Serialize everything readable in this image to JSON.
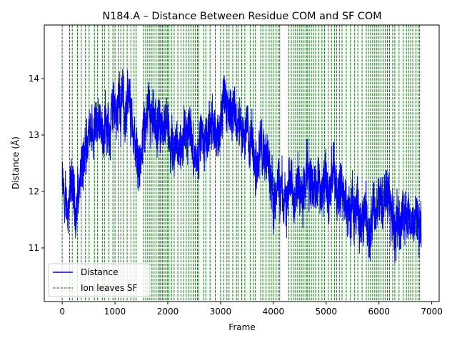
{
  "chart_data": {
    "type": "line",
    "title": "N184.A – Distance Between Residue COM and SF COM",
    "xlabel": "Frame",
    "ylabel": "Distance (Å)",
    "xlim": [
      -340,
      7140
    ],
    "ylim": [
      10.05,
      14.95
    ],
    "xticks": [
      0,
      1000,
      2000,
      3000,
      4000,
      5000,
      6000,
      7000
    ],
    "yticks": [
      11,
      12,
      13,
      14
    ],
    "grid": false,
    "legend": {
      "position": "lower-left"
    },
    "colors": {
      "distance": "#0000ff",
      "events": "#008000"
    },
    "series": [
      {
        "name": "Distance",
        "style": "solid",
        "anchors": [
          [
            0,
            12.2
          ],
          [
            50,
            11.6
          ],
          [
            100,
            11.8
          ],
          [
            150,
            11.9
          ],
          [
            200,
            12.1
          ],
          [
            250,
            11.6
          ],
          [
            300,
            11.9
          ],
          [
            350,
            12.3
          ],
          [
            400,
            12.4
          ],
          [
            450,
            12.7
          ],
          [
            500,
            13.1
          ],
          [
            550,
            13.3
          ],
          [
            600,
            13.0
          ],
          [
            650,
            13.2
          ],
          [
            700,
            13.1
          ],
          [
            750,
            13.0
          ],
          [
            800,
            13.2
          ],
          [
            850,
            13.3
          ],
          [
            900,
            13.0
          ],
          [
            950,
            13.5
          ],
          [
            1000,
            13.6
          ],
          [
            1050,
            13.4
          ],
          [
            1100,
            13.5
          ],
          [
            1150,
            13.6
          ],
          [
            1200,
            13.3
          ],
          [
            1250,
            13.6
          ],
          [
            1300,
            13.4
          ],
          [
            1350,
            13.0
          ],
          [
            1400,
            12.7
          ],
          [
            1450,
            12.6
          ],
          [
            1500,
            12.5
          ],
          [
            1550,
            13.1
          ],
          [
            1600,
            13.3
          ],
          [
            1650,
            13.3
          ],
          [
            1700,
            13.0
          ],
          [
            1750,
            13.1
          ],
          [
            1800,
            13.1
          ],
          [
            1850,
            12.9
          ],
          [
            1900,
            13.2
          ],
          [
            1950,
            13.3
          ],
          [
            2000,
            13.0
          ],
          [
            2050,
            12.8
          ],
          [
            2100,
            12.9
          ],
          [
            2150,
            13.0
          ],
          [
            2200,
            12.9
          ],
          [
            2250,
            12.7
          ],
          [
            2300,
            12.8
          ],
          [
            2350,
            12.9
          ],
          [
            2400,
            13.1
          ],
          [
            2450,
            13.0
          ],
          [
            2500,
            12.6
          ],
          [
            2550,
            12.6
          ],
          [
            2600,
            12.9
          ],
          [
            2650,
            12.9
          ],
          [
            2700,
            12.8
          ],
          [
            2750,
            13.0
          ],
          [
            2800,
            13.2
          ],
          [
            2850,
            13.3
          ],
          [
            2900,
            13.2
          ],
          [
            2950,
            13.0
          ],
          [
            3000,
            13.2
          ],
          [
            3050,
            13.6
          ],
          [
            3100,
            13.4
          ],
          [
            3150,
            13.5
          ],
          [
            3200,
            13.6
          ],
          [
            3250,
            13.4
          ],
          [
            3300,
            13.3
          ],
          [
            3350,
            13.4
          ],
          [
            3400,
            13.1
          ],
          [
            3450,
            13.0
          ],
          [
            3500,
            13.2
          ],
          [
            3550,
            13.0
          ],
          [
            3600,
            12.8
          ],
          [
            3650,
            12.6
          ],
          [
            3700,
            12.8
          ],
          [
            3750,
            12.9
          ],
          [
            3800,
            12.6
          ],
          [
            3850,
            12.5
          ],
          [
            3900,
            12.5
          ],
          [
            3950,
            12.3
          ],
          [
            4000,
            12.0
          ],
          [
            4050,
            11.9
          ],
          [
            4100,
            11.8
          ],
          [
            4150,
            12.0
          ],
          [
            4200,
            11.9
          ],
          [
            4250,
            11.8
          ],
          [
            4300,
            12.1
          ],
          [
            4350,
            12.3
          ],
          [
            4400,
            12.1
          ],
          [
            4450,
            12.2
          ],
          [
            4500,
            12.3
          ],
          [
            4550,
            12.1
          ],
          [
            4600,
            12.2
          ],
          [
            4650,
            12.4
          ],
          [
            4700,
            12.3
          ],
          [
            4750,
            12.1
          ],
          [
            4800,
            12.2
          ],
          [
            4850,
            12.3
          ],
          [
            4900,
            12.0
          ],
          [
            4950,
            12.2
          ],
          [
            5000,
            12.1
          ],
          [
            5050,
            12.0
          ],
          [
            5100,
            12.1
          ],
          [
            5150,
            12.2
          ],
          [
            5200,
            12.0
          ],
          [
            5250,
            12.2
          ],
          [
            5300,
            11.9
          ],
          [
            5350,
            11.6
          ],
          [
            5400,
            11.7
          ],
          [
            5450,
            11.6
          ],
          [
            5500,
            11.7
          ],
          [
            5550,
            11.8
          ],
          [
            5600,
            11.7
          ],
          [
            5650,
            11.5
          ],
          [
            5700,
            11.6
          ],
          [
            5750,
            11.7
          ],
          [
            5800,
            11.4
          ],
          [
            5850,
            11.5
          ],
          [
            5900,
            11.8
          ],
          [
            5950,
            11.6
          ],
          [
            6000,
            12.0
          ],
          [
            6050,
            11.8
          ],
          [
            6100,
            11.9
          ],
          [
            6150,
            12.1
          ],
          [
            6200,
            11.8
          ],
          [
            6250,
            11.6
          ],
          [
            6300,
            11.5
          ],
          [
            6350,
            11.4
          ],
          [
            6400,
            11.6
          ],
          [
            6450,
            11.5
          ],
          [
            6500,
            11.6
          ],
          [
            6550,
            11.7
          ],
          [
            6600,
            11.4
          ],
          [
            6650,
            11.5
          ],
          [
            6700,
            11.7
          ],
          [
            6750,
            11.6
          ],
          [
            6800,
            11.7
          ]
        ],
        "max_frame": 6800,
        "noise_amplitude": 0.5,
        "data_range": [
          10.25,
          14.6
        ]
      },
      {
        "name": "Ion leaves SF",
        "style": "dashed",
        "frames": [
          0,
          140,
          190,
          290,
          360,
          440,
          510,
          610,
          670,
          760,
          800,
          880,
          960,
          1000,
          1060,
          1110,
          1160,
          1230,
          1300,
          1360,
          1400,
          1540,
          1580,
          1620,
          1660,
          1700,
          1740,
          1780,
          1820,
          1850,
          1870,
          1900,
          1930,
          1960,
          1990,
          2020,
          2070,
          2120,
          2190,
          2250,
          2300,
          2350,
          2400,
          2440,
          2480,
          2520,
          2560,
          2580,
          2680,
          2720,
          2800,
          2900,
          3000,
          3060,
          3120,
          3160,
          3230,
          3300,
          3330,
          3400,
          3460,
          3560,
          3620,
          3660,
          3760,
          3800,
          3860,
          3920,
          3960,
          4000,
          4050,
          4090,
          4120,
          4290,
          4340,
          4390,
          4420,
          4460,
          4500,
          4540,
          4580,
          4620,
          4640,
          4680,
          4720,
          4760,
          4800,
          4860,
          4920,
          4970,
          5040,
          5100,
          5160,
          5200,
          5250,
          5300,
          5380,
          5460,
          5540,
          5600,
          5680,
          5760,
          5800,
          5840,
          5880,
          5920,
          5960,
          6000,
          6040,
          6080,
          6120,
          6160,
          6200,
          6260,
          6300,
          6380,
          6460,
          6520,
          6560,
          6600,
          6640,
          6700,
          6740,
          6770
        ]
      }
    ]
  }
}
